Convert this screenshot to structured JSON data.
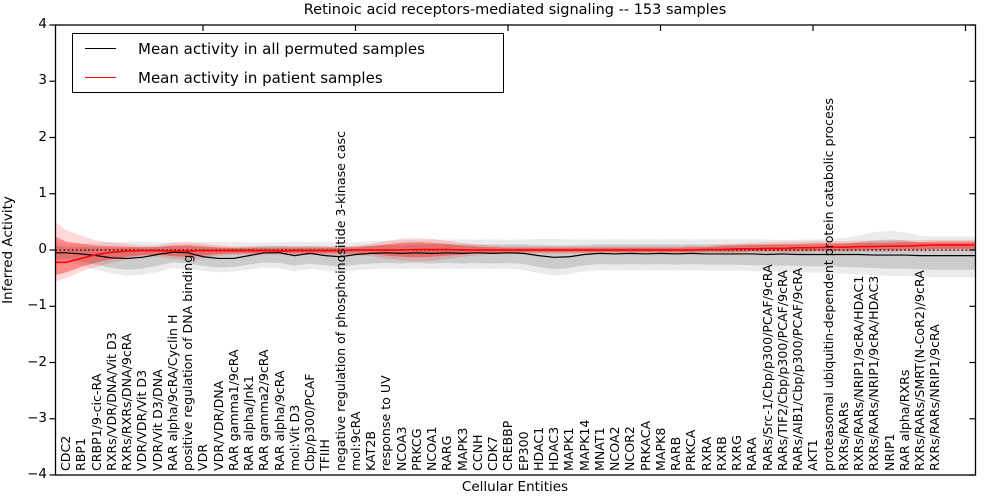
{
  "title": "Retinoic acid receptors-mediated signaling -- 153 samples",
  "legend": [
    {
      "label": "Mean activity in all permuted samples",
      "color": "#000000"
    },
    {
      "label": "Mean activity in patient samples",
      "color": "#ff0000"
    }
  ],
  "colors": {
    "permuted_line": "#000000",
    "patient_line": "#ff0000",
    "permuted_band": "#000000",
    "patient_band": "#ff0000",
    "zero_line": "#000000"
  },
  "chart_data": {
    "type": "line",
    "title": "Retinoic acid receptors-mediated signaling -- 153 samples",
    "xlabel": "Cellular Entities",
    "ylabel": "Inferred Activity",
    "ylim": [
      -4,
      4
    ],
    "yticks": [
      -4,
      -3,
      -2,
      -1,
      0,
      1,
      2,
      3,
      4
    ],
    "grid": false,
    "legend_position": "upper left",
    "zero_reference_line": 0,
    "categories": [
      "CDC2",
      "RBP1",
      "CRBP1/9-cic-RA",
      "RXRs/VDR/DNA/Vit D3",
      "RXRs/RXRs/DNA/9cRA",
      "VDR/VDR/Vit D3",
      "VDR/Vit D3/DNA",
      "RAR alpha/9cRA/Cyclin H",
      "positive regulation of DNA binding",
      "VDR",
      "VDR/VDR/DNA",
      "RAR gamma1/9cRA",
      "RAR alpha/Jnk1",
      "RAR gamma2/9cRA",
      "RAR alpha/9cRA",
      "mol:Vit D3",
      "Cbp/p300/PCAF",
      "TFIIH",
      "negative regulation of phosphoinositide 3-kinase casc",
      "mol:9cRA",
      "KAT2B",
      "response to UV",
      "NCOA3",
      "PRKCG",
      "NCOA1",
      "RARG",
      "MAPK3",
      "CCNH",
      "CDK7",
      "CREBBP",
      "EP300",
      "HDAC1",
      "HDAC3",
      "MAPK1",
      "MAPK14",
      "MNAT1",
      "NCOA2",
      "NCOR2",
      "PRKACA",
      "MAPK8",
      "RARB",
      "PRKCA",
      "RXRA",
      "RXRB",
      "RXRG",
      "RARA",
      "RARs/Src-1/Cbp/p300/PCAF/9cRA",
      "RARs/TIF2/Cbp/p300/PCAF/9cRA",
      "RARs/AIB1/Cbp/p300/PCAF/9cRA",
      "AKT1",
      "proteasomal ubiquitin-dependent protein catabolic process",
      "RXRs/RARs",
      "RXRs/RARs/NRIP1/9cRA/HDAC1",
      "RXRs/RARs/NRIP1/9cRA/HDAC3",
      "NRIP1",
      "RAR alpha/RXRs",
      "RXRs/RARs/SMRT(N-CoR2)/9cRA",
      "RXRs/RARs/NRIP1/9cRA"
    ],
    "series": [
      {
        "name": "Mean activity in all permuted samples",
        "color": "#000000",
        "values": [
          -0.05,
          -0.07,
          -0.1,
          -0.14,
          -0.15,
          -0.13,
          -0.08,
          -0.04,
          -0.05,
          -0.12,
          -0.15,
          -0.15,
          -0.1,
          -0.05,
          -0.05,
          -0.1,
          -0.06,
          -0.1,
          -0.12,
          -0.08,
          -0.06,
          -0.05,
          -0.06,
          -0.05,
          -0.06,
          -0.05,
          -0.06,
          -0.05,
          -0.06,
          -0.05,
          -0.06,
          -0.1,
          -0.13,
          -0.12,
          -0.08,
          -0.06,
          -0.07,
          -0.06,
          -0.07,
          -0.06,
          -0.07,
          -0.06,
          -0.07,
          -0.07,
          -0.07,
          -0.07,
          -0.08,
          -0.07,
          -0.08,
          -0.08,
          -0.08,
          -0.08,
          -0.08,
          -0.09,
          -0.09,
          -0.09,
          -0.1,
          -0.1
        ]
      },
      {
        "name": "Mean activity in patient samples",
        "color": "#ff0000",
        "values": [
          -0.22,
          -0.15,
          -0.08,
          -0.04,
          -0.02,
          -0.01,
          -0.01,
          -0.02,
          -0.02,
          -0.01,
          -0.01,
          -0.01,
          -0.01,
          -0.01,
          -0.02,
          -0.01,
          -0.01,
          -0.01,
          -0.01,
          0.0,
          0.0,
          0.0,
          0.0,
          0.01,
          0.01,
          0.01,
          0.0,
          0.0,
          0.0,
          0.0,
          0.0,
          0.0,
          0.0,
          0.0,
          0.0,
          0.0,
          0.0,
          0.0,
          0.0,
          0.0,
          0.0,
          0.0,
          0.01,
          0.01,
          0.02,
          0.02,
          0.03,
          0.03,
          0.04,
          0.04,
          0.05,
          0.05,
          0.06,
          0.06,
          0.07,
          0.07,
          0.08,
          0.09
        ]
      }
    ],
    "bands": [
      {
        "name": "permuted-activity-range",
        "color": "#000000",
        "alpha_inner": 0.13,
        "alpha_outer": 0.08,
        "center_series": 0,
        "upper": [
          0.05,
          0.05,
          0.05,
          0.04,
          0.04,
          0.05,
          0.06,
          0.07,
          0.06,
          0.05,
          0.04,
          0.04,
          0.05,
          0.07,
          0.07,
          0.06,
          0.07,
          0.06,
          0.05,
          0.06,
          0.08,
          0.09,
          0.09,
          0.1,
          0.1,
          0.1,
          0.1,
          0.1,
          0.1,
          0.1,
          0.1,
          0.09,
          0.08,
          0.08,
          0.09,
          0.1,
          0.1,
          0.1,
          0.1,
          0.1,
          0.1,
          0.1,
          0.1,
          0.1,
          0.1,
          0.1,
          0.09,
          0.09,
          0.09,
          0.09,
          0.1,
          0.11,
          0.14,
          0.17,
          0.19,
          0.17,
          0.13,
          0.12
        ],
        "lower": [
          -0.15,
          -0.2,
          -0.26,
          -0.32,
          -0.35,
          -0.33,
          -0.28,
          -0.22,
          -0.24,
          -0.28,
          -0.31,
          -0.3,
          -0.26,
          -0.22,
          -0.23,
          -0.28,
          -0.24,
          -0.27,
          -0.3,
          -0.26,
          -0.24,
          -0.23,
          -0.24,
          -0.23,
          -0.24,
          -0.23,
          -0.24,
          -0.23,
          -0.24,
          -0.23,
          -0.25,
          -0.3,
          -0.34,
          -0.32,
          -0.27,
          -0.25,
          -0.26,
          -0.25,
          -0.26,
          -0.25,
          -0.26,
          -0.25,
          -0.26,
          -0.26,
          -0.26,
          -0.27,
          -0.27,
          -0.28,
          -0.28,
          -0.29,
          -0.29,
          -0.3,
          -0.31,
          -0.32,
          -0.33,
          -0.33,
          -0.34,
          -0.35
        ]
      },
      {
        "name": "patient-activity-range",
        "color": "#ff0000",
        "alpha_inner": 0.36,
        "alpha_outer": 0.15,
        "center_series": 1,
        "upper": [
          0.15,
          0.11,
          0.08,
          0.07,
          0.06,
          0.05,
          0.05,
          0.08,
          0.09,
          0.07,
          0.05,
          0.04,
          0.04,
          0.04,
          0.04,
          0.04,
          0.04,
          0.04,
          0.04,
          0.05,
          0.07,
          0.1,
          0.13,
          0.14,
          0.13,
          0.11,
          0.08,
          0.06,
          0.05,
          0.04,
          0.04,
          0.04,
          0.04,
          0.04,
          0.04,
          0.04,
          0.04,
          0.04,
          0.04,
          0.04,
          0.04,
          0.05,
          0.05,
          0.07,
          0.08,
          0.09,
          0.1,
          0.11,
          0.11,
          0.12,
          0.12,
          0.12,
          0.13,
          0.13,
          0.13,
          0.14,
          0.14,
          0.15
        ],
        "lower": [
          -0.4,
          -0.3,
          -0.22,
          -0.16,
          -0.12,
          -0.09,
          -0.08,
          -0.11,
          -0.12,
          -0.1,
          -0.07,
          -0.06,
          -0.06,
          -0.06,
          -0.06,
          -0.06,
          -0.06,
          -0.06,
          -0.06,
          -0.06,
          -0.07,
          -0.1,
          -0.12,
          -0.13,
          -0.12,
          -0.1,
          -0.08,
          -0.06,
          -0.05,
          -0.05,
          -0.04,
          -0.04,
          -0.04,
          -0.04,
          -0.04,
          -0.04,
          -0.04,
          -0.04,
          -0.04,
          -0.04,
          -0.04,
          -0.04,
          -0.03,
          -0.03,
          -0.03,
          -0.02,
          -0.02,
          -0.02,
          -0.02,
          -0.01,
          -0.01,
          -0.01,
          0.0,
          0.0,
          0.0,
          0.01,
          0.01,
          0.02
        ]
      }
    ]
  }
}
